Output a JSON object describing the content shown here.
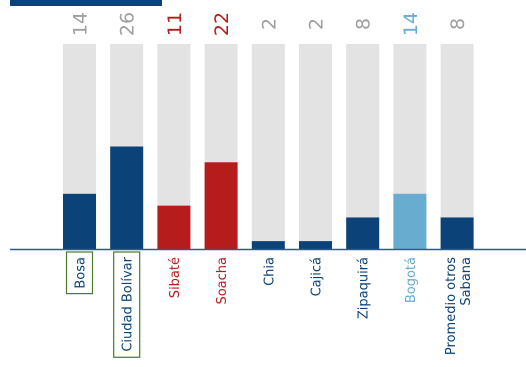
{
  "chart_data": {
    "type": "bar",
    "stacked_remainder": true,
    "categories": [
      "Bosa",
      "Ciudad Bolívar",
      "Sibaté",
      "Soacha",
      "Chia",
      "Cajicá",
      "Zipaquirá",
      "Bogotá",
      "Promedio otros\nSabana"
    ],
    "values": [
      14,
      26,
      11,
      22,
      2,
      2,
      8,
      14,
      8
    ],
    "value_labels": [
      "14",
      "26",
      "11",
      "22",
      "2",
      "2",
      "8",
      "14",
      "8"
    ],
    "ylim": [
      0,
      52
    ],
    "bar_colors": [
      "#0b4278",
      "#0b4278",
      "#b71c1c",
      "#b71c1c",
      "#0b4278",
      "#0b4278",
      "#0b4278",
      "#68acd0",
      "#0b4278"
    ],
    "value_label_colors": [
      "#9e9e9e",
      "#9e9e9e",
      "#b71c1c",
      "#b71c1c",
      "#9e9e9e",
      "#9e9e9e",
      "#9e9e9e",
      "#68acd0",
      "#9e9e9e"
    ],
    "category_label_colors": [
      "#0b4278",
      "#0b4278",
      "#b71c1c",
      "#b71c1c",
      "#0b4278",
      "#0b4278",
      "#0b4278",
      "#68acd0",
      "#0b4278"
    ],
    "highlighted_categories": [
      "Bosa",
      "Ciudad Bolívar"
    ],
    "remainder_color": "#e3e3e3",
    "highlight_box_color": "#4a7a2c",
    "baseline_color": "#2e5a8c",
    "grid": false,
    "title": "",
    "xlabel": "",
    "ylabel": ""
  }
}
